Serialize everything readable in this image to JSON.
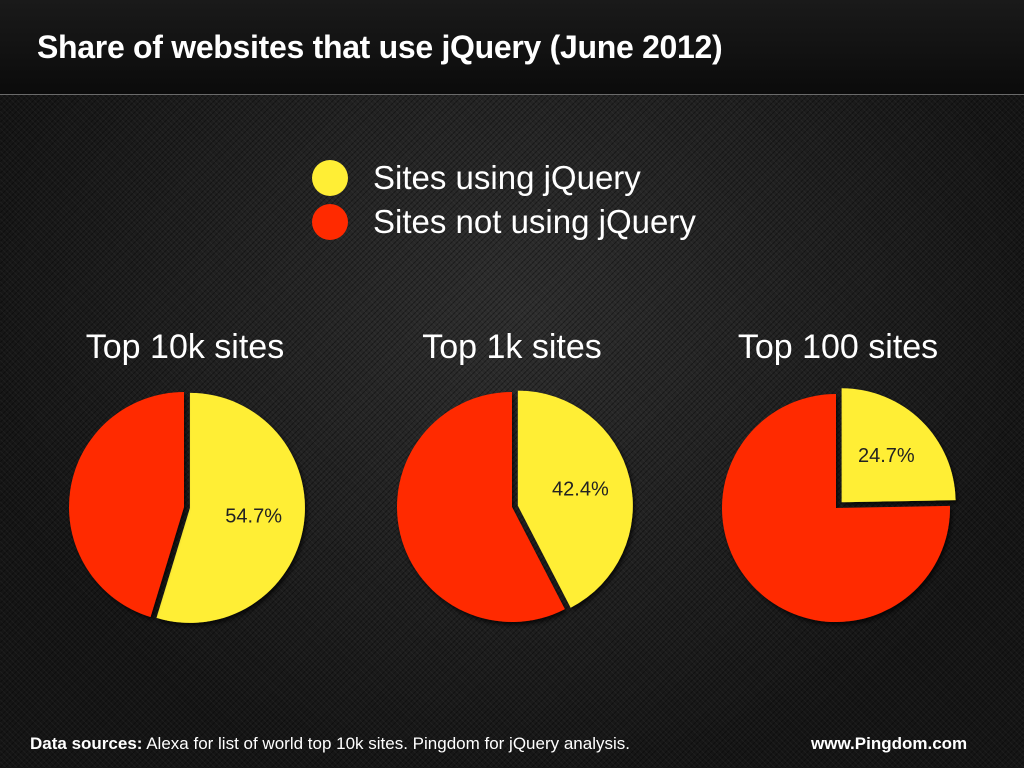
{
  "chart_data": [
    {
      "type": "pie",
      "title": "Top 10k sites",
      "slices": [
        {
          "label": "Sites using jQuery",
          "value": 54.7,
          "display": "54.7%",
          "color": "#ffee35",
          "exploded": true
        },
        {
          "label": "Sites not using jQuery",
          "value": 45.3,
          "display": "",
          "color": "#ff2a00",
          "exploded": false
        }
      ]
    },
    {
      "type": "pie",
      "title": "Top 1k sites",
      "slices": [
        {
          "label": "Sites using jQuery",
          "value": 42.4,
          "display": "42.4%",
          "color": "#ffee35",
          "exploded": true
        },
        {
          "label": "Sites not using jQuery",
          "value": 57.6,
          "display": "",
          "color": "#ff2a00",
          "exploded": false
        }
      ]
    },
    {
      "type": "pie",
      "title": "Top 100 sites",
      "slices": [
        {
          "label": "Sites using jQuery",
          "value": 24.7,
          "display": "24.7%",
          "color": "#ffee35",
          "exploded": true
        },
        {
          "label": "Sites not using jQuery",
          "value": 75.3,
          "display": "",
          "color": "#ff2a00",
          "exploded": false
        }
      ]
    }
  ],
  "header": {
    "title": "Share of websites that use jQuery (June 2012)"
  },
  "legend": {
    "placement": "top-center",
    "items": [
      {
        "label": "Sites using jQuery",
        "color": "#ffee35"
      },
      {
        "label": "Sites not using jQuery",
        "color": "#ff2a00"
      }
    ]
  },
  "footer": {
    "sources_label": "Data sources:",
    "sources_text": " Alexa for list of world top 10k sites. Pingdom for jQuery analysis.",
    "site": "www.Pingdom.com"
  }
}
